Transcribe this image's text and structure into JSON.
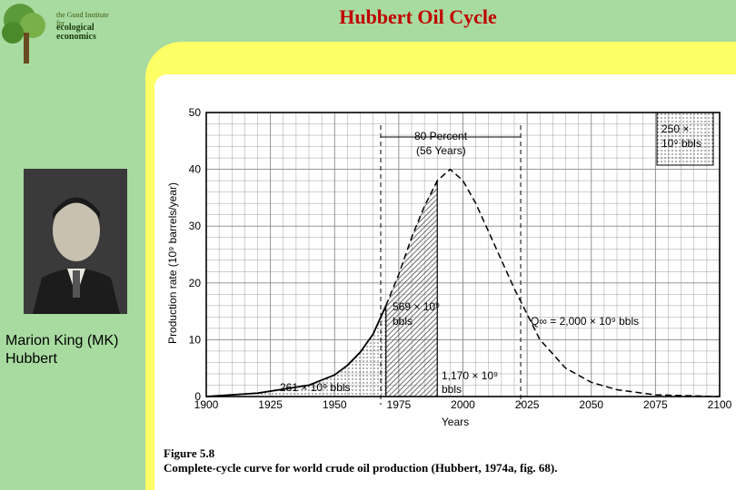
{
  "slide": {
    "title": "Hubbert Oil Cycle",
    "logo_line1": "the Gund Institute for",
    "logo_line2": "ecological economics",
    "caption": "Marion King (MK) Hubbert"
  },
  "figure": {
    "label": "Figure 5.8",
    "caption": "Complete-cycle curve for world crude oil production (Hubbert, 1974a, fig. 68)."
  },
  "chart_data": {
    "type": "line",
    "xlabel": "Years",
    "ylabel": "Production rate (10⁹ barrels/year)",
    "xlim": [
      1900,
      2100
    ],
    "ylim": [
      0,
      50
    ],
    "x_ticks": [
      "1900",
      "1925",
      "1950",
      "1975",
      "2000",
      "2025",
      "2050",
      "2075",
      "2100"
    ],
    "y_ticks": [
      "0",
      "10",
      "20",
      "30",
      "40",
      "50"
    ],
    "grid": true,
    "series": [
      {
        "style": "solid-then-dashed",
        "x": [
          1900,
          1910,
          1920,
          1930,
          1940,
          1950,
          1955,
          1960,
          1965,
          1970,
          1975,
          1980,
          1985,
          1990,
          1995,
          2000,
          2005,
          2010,
          2020,
          2030,
          2040,
          2050,
          2060,
          2075,
          2100
        ],
        "y": [
          0,
          0.3,
          0.6,
          1.3,
          2,
          3.8,
          5.5,
          7.8,
          11,
          16,
          21.5,
          28,
          33.5,
          38,
          40,
          38,
          34,
          29,
          19,
          10,
          5,
          2.5,
          1.2,
          0.3,
          0
        ]
      }
    ],
    "annotations": [
      {
        "text": "80 Percent"
      },
      {
        "text": "(56 Years)"
      },
      {
        "text": "250 ×"
      },
      {
        "text": "10⁹ bbls"
      },
      {
        "text": "569 × 10⁹"
      },
      {
        "text": "bbls"
      },
      {
        "text": "261 × 10⁹ bbls"
      },
      {
        "text": "1,170 × 10⁹"
      },
      {
        "text": "bbls"
      },
      {
        "text": "Q∞ = 2,000 × 10⁹ bbls"
      }
    ]
  }
}
